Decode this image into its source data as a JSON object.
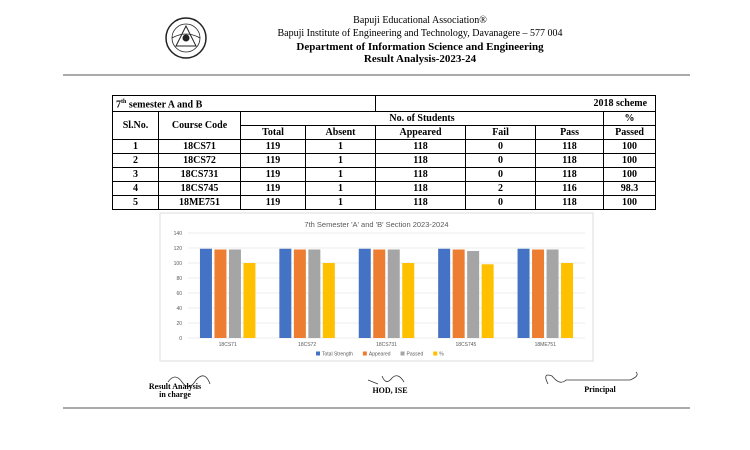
{
  "header": {
    "line1": "Bapuji Educational Association®",
    "line2": "Bapuji Institute of Engineering and Technology, Davanagere – 577 004",
    "line3": "Department of Information Science and Engineering",
    "line4": "Result Analysis-2023-24"
  },
  "table": {
    "semester": "7",
    "semester_suffix": "th",
    "semester_text": "semester A and B",
    "scheme": "2018 scheme",
    "columns": {
      "sl": "Sl.No.",
      "code": "Course Code",
      "students": "No. of Students",
      "total": "Total",
      "absent": "Absent",
      "appeared": "Appeared",
      "fail": "Fail",
      "pass": "Pass",
      "pct_symbol": "%",
      "pct_word": "Passed"
    },
    "rows": [
      [
        1,
        "18CS71",
        119,
        1,
        118,
        0,
        118,
        100
      ],
      [
        2,
        "18CS72",
        119,
        1,
        118,
        0,
        118,
        100
      ],
      [
        3,
        "18CS731",
        119,
        1,
        118,
        0,
        118,
        100
      ],
      [
        4,
        "18CS745",
        119,
        1,
        118,
        2,
        116,
        98.3
      ],
      [
        5,
        "18ME751",
        119,
        1,
        118,
        0,
        118,
        100
      ]
    ]
  },
  "chart_data": {
    "type": "bar",
    "title": "7th Semester 'A' and 'B' Section 2023-2024",
    "categories": [
      "18CS71",
      "18CS72",
      "18CS731",
      "18CS745",
      "18ME751"
    ],
    "series": [
      {
        "name": "Total Strength",
        "color": "#4472c4",
        "values": [
          119,
          119,
          119,
          119,
          119
        ]
      },
      {
        "name": "Appeared",
        "color": "#ed7d31",
        "values": [
          118,
          118,
          118,
          118,
          118
        ]
      },
      {
        "name": "Passed",
        "color": "#a5a5a5",
        "values": [
          118,
          118,
          118,
          116,
          118
        ]
      },
      {
        "name": "%",
        "color": "#ffc000",
        "values": [
          100,
          100,
          100,
          98.3,
          100
        ]
      }
    ],
    "ylim": [
      0,
      140
    ],
    "yticks": [
      0,
      20,
      40,
      60,
      80,
      100,
      120,
      140
    ],
    "grid": true,
    "legend": "bottom"
  },
  "signatures": {
    "analysis_line1": "Result Analysis",
    "analysis_line2": "in charge",
    "hod": "HOD, ISE",
    "principal": "Principal"
  }
}
